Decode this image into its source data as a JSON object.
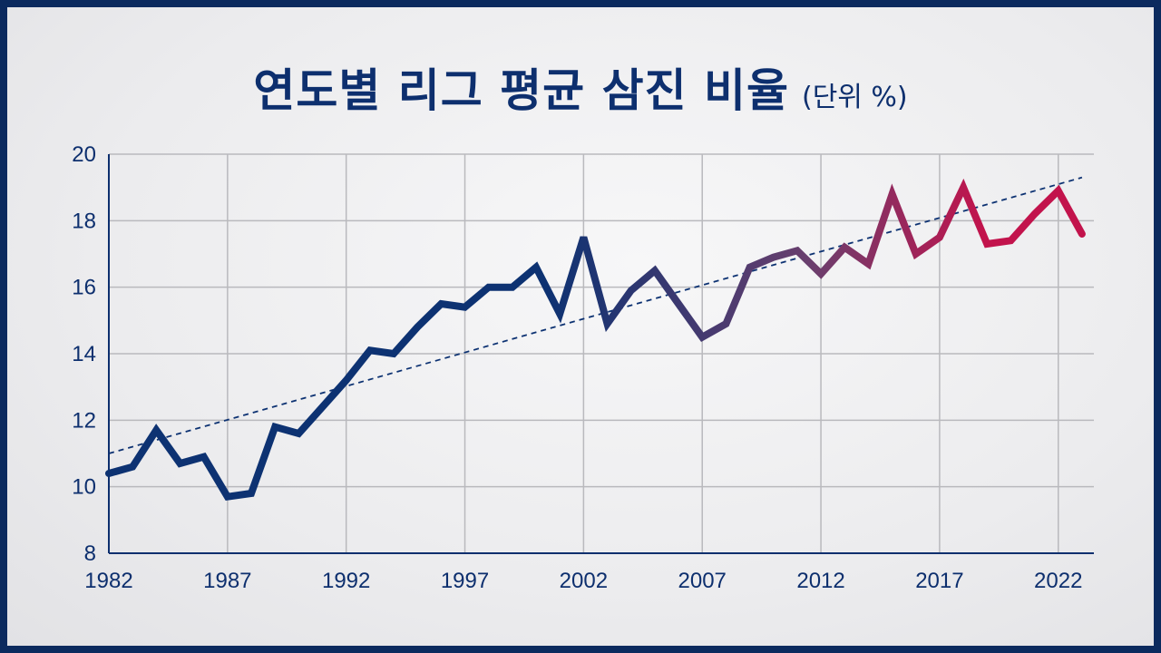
{
  "title": "연도별 리그 평균 삼진 비율",
  "unit": "(단위 %)",
  "chart_data": {
    "type": "line",
    "title": "연도별 리그 평균 삼진 비율",
    "unit": "(단위 %)",
    "xlim": [
      1982,
      2023
    ],
    "ylim": [
      8,
      20
    ],
    "x_ticks": [
      1982,
      1987,
      1992,
      1997,
      2002,
      2007,
      2012,
      2017,
      2022
    ],
    "y_ticks": [
      8,
      10,
      12,
      14,
      16,
      18,
      20
    ],
    "grid": true,
    "colors": {
      "start": "#0d3272",
      "end": "#c2134c",
      "trend": "#0d3272",
      "grid": "#b9b9bd",
      "axis": "#0d2f6e"
    },
    "series": [
      {
        "x": [
          1982,
          1983,
          1984,
          1985,
          1986,
          1987,
          1988,
          1989,
          1990,
          1991,
          1992,
          1993,
          1994,
          1995,
          1996,
          1997,
          1998,
          1999,
          2000,
          2001,
          2002,
          2003,
          2004,
          2005,
          2006,
          2007,
          2008,
          2009,
          2010,
          2011,
          2012,
          2013,
          2014,
          2015,
          2016,
          2017,
          2018,
          2019,
          2020,
          2021,
          2022,
          2023
        ],
        "values": [
          10.4,
          10.6,
          11.7,
          10.7,
          10.9,
          9.7,
          9.8,
          11.8,
          11.6,
          12.4,
          13.2,
          14.1,
          14.0,
          14.8,
          15.5,
          15.4,
          16.0,
          16.0,
          16.6,
          15.2,
          17.5,
          14.9,
          15.9,
          16.5,
          15.5,
          14.5,
          14.9,
          16.6,
          16.9,
          17.1,
          16.4,
          17.2,
          16.7,
          18.8,
          17.0,
          17.5,
          19.0,
          17.3,
          17.4,
          18.2,
          18.9,
          17.6
        ]
      }
    ],
    "trendline": {
      "x": [
        1982,
        2023
      ],
      "y": [
        11.0,
        19.3
      ]
    }
  }
}
